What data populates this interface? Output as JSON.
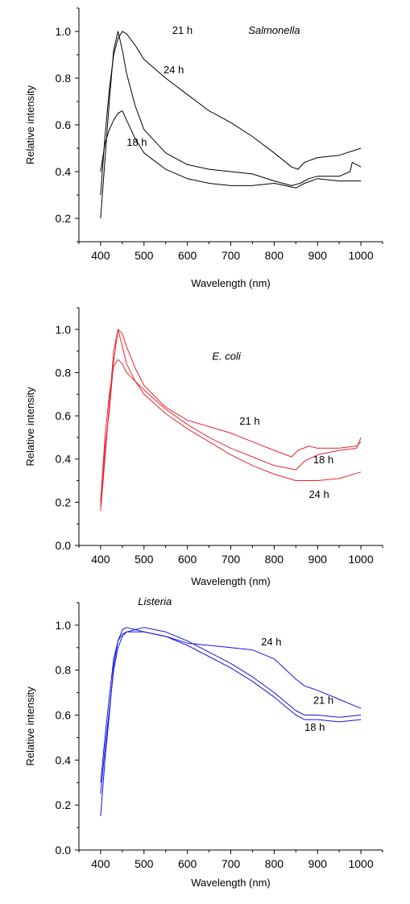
{
  "chart_data": [
    {
      "type": "line",
      "title": "Salmonella",
      "xlabel": "Wavelength (nm)",
      "ylabel": "Relative intensity",
      "xlim": [
        350,
        1050
      ],
      "ylim": [
        0.1,
        1.1
      ],
      "xticks": [
        400,
        500,
        600,
        700,
        800,
        900,
        1000
      ],
      "xtick_labels": [
        "400",
        "500",
        "600",
        "700",
        "800",
        "900",
        "1000"
      ],
      "yticks": [
        0.2,
        0.4,
        0.6,
        0.8,
        1.0
      ],
      "ytick_labels": [
        "0.2",
        "0.4",
        "0.6",
        "0.8",
        "1.0"
      ],
      "color": "#000000",
      "series": [
        {
          "name": "21 h",
          "x": [
            400,
            410,
            420,
            430,
            440,
            450,
            460,
            480,
            500,
            550,
            600,
            650,
            700,
            750,
            800,
            840,
            855,
            870,
            900,
            950,
            1000
          ],
          "y": [
            0.3,
            0.55,
            0.75,
            0.9,
            0.97,
            1.0,
            0.99,
            0.94,
            0.88,
            0.8,
            0.73,
            0.66,
            0.61,
            0.55,
            0.48,
            0.42,
            0.41,
            0.44,
            0.46,
            0.47,
            0.5
          ]
        },
        {
          "name": "24 h",
          "x": [
            400,
            410,
            420,
            430,
            440,
            450,
            460,
            480,
            500,
            550,
            600,
            650,
            700,
            750,
            800,
            840,
            860,
            880,
            900,
            950,
            975,
            980,
            1000
          ],
          "y": [
            0.2,
            0.45,
            0.7,
            0.92,
            1.0,
            0.92,
            0.82,
            0.68,
            0.58,
            0.48,
            0.43,
            0.41,
            0.4,
            0.39,
            0.36,
            0.34,
            0.35,
            0.37,
            0.38,
            0.38,
            0.4,
            0.44,
            0.42
          ]
        },
        {
          "name": "18 h",
          "x": [
            400,
            410,
            420,
            430,
            440,
            450,
            460,
            480,
            500,
            550,
            600,
            650,
            700,
            750,
            800,
            850,
            870,
            900,
            950,
            1000
          ],
          "y": [
            0.4,
            0.52,
            0.58,
            0.62,
            0.65,
            0.66,
            0.62,
            0.54,
            0.48,
            0.41,
            0.37,
            0.35,
            0.34,
            0.34,
            0.35,
            0.33,
            0.35,
            0.37,
            0.36,
            0.36
          ]
        }
      ],
      "annotations": [
        {
          "text": "21 h",
          "x": 565,
          "y": 0.99
        },
        {
          "text": "24 h",
          "x": 545,
          "y": 0.82
        },
        {
          "text": "18 h",
          "x": 460,
          "y": 0.51
        }
      ],
      "title_at": {
        "x": 800,
        "y": 0.99
      }
    },
    {
      "type": "line",
      "title": "E. coli",
      "xlabel": "Wavelength (nm)",
      "ylabel": "Relative intensity",
      "xlim": [
        350,
        1050
      ],
      "ylim": [
        0.0,
        1.1
      ],
      "xticks": [
        400,
        500,
        600,
        700,
        800,
        900,
        1000
      ],
      "xtick_labels": [
        "400",
        "500",
        "600",
        "700",
        "800",
        "900",
        "1000"
      ],
      "yticks": [
        0.0,
        0.2,
        0.4,
        0.6,
        0.8,
        1.0
      ],
      "ytick_labels": [
        "0.0",
        "0.2",
        "0.4",
        "0.6",
        "0.8",
        "1.0"
      ],
      "color": "#e8242e",
      "series": [
        {
          "name": "21 h",
          "x": [
            400,
            410,
            420,
            430,
            440,
            450,
            460,
            480,
            500,
            550,
            600,
            650,
            700,
            750,
            800,
            840,
            855,
            880,
            900,
            950,
            990,
            1000
          ],
          "y": [
            0.18,
            0.45,
            0.62,
            0.85,
            1.0,
            0.98,
            0.92,
            0.82,
            0.74,
            0.64,
            0.58,
            0.55,
            0.52,
            0.48,
            0.44,
            0.41,
            0.44,
            0.46,
            0.45,
            0.45,
            0.46,
            0.48
          ]
        },
        {
          "name": "18 h",
          "x": [
            400,
            410,
            420,
            430,
            440,
            450,
            460,
            480,
            500,
            550,
            600,
            650,
            700,
            750,
            800,
            850,
            870,
            900,
            950,
            990,
            1000
          ],
          "y": [
            0.2,
            0.5,
            0.7,
            0.83,
            0.86,
            0.84,
            0.8,
            0.76,
            0.72,
            0.63,
            0.56,
            0.5,
            0.45,
            0.41,
            0.37,
            0.35,
            0.39,
            0.42,
            0.44,
            0.45,
            0.5
          ]
        },
        {
          "name": "24 h",
          "x": [
            400,
            410,
            420,
            430,
            440,
            450,
            460,
            480,
            500,
            550,
            600,
            650,
            700,
            750,
            800,
            850,
            870,
            900,
            950,
            1000
          ],
          "y": [
            0.16,
            0.4,
            0.65,
            0.9,
            1.0,
            0.92,
            0.84,
            0.76,
            0.7,
            0.61,
            0.54,
            0.48,
            0.42,
            0.37,
            0.33,
            0.3,
            0.3,
            0.3,
            0.31,
            0.34
          ]
        }
      ],
      "annotations": [
        {
          "text": "21 h",
          "x": 720,
          "y": 0.56
        },
        {
          "text": "18 h",
          "x": 890,
          "y": 0.38
        },
        {
          "text": "24 h",
          "x": 880,
          "y": 0.22
        }
      ],
      "title_at": {
        "x": 690,
        "y": 0.86
      }
    },
    {
      "type": "line",
      "title": "Listeria",
      "xlabel": "Wavelength (nm)",
      "ylabel": "Relative intensity",
      "xlim": [
        350,
        1050
      ],
      "ylim": [
        0.0,
        1.1
      ],
      "xticks": [
        400,
        500,
        600,
        700,
        800,
        900,
        1000
      ],
      "xtick_labels": [
        "400",
        "500",
        "600",
        "700",
        "800",
        "900",
        "1000"
      ],
      "yticks": [
        0.0,
        0.2,
        0.4,
        0.6,
        0.8,
        1.0
      ],
      "ytick_labels": [
        "0.0",
        "0.2",
        "0.4",
        "0.6",
        "0.8",
        "1.0"
      ],
      "color": "#1414e6",
      "series": [
        {
          "name": "24 h",
          "x": [
            400,
            410,
            420,
            430,
            440,
            450,
            460,
            480,
            500,
            550,
            600,
            650,
            700,
            750,
            800,
            850,
            870,
            900,
            950,
            1000
          ],
          "y": [
            0.15,
            0.4,
            0.6,
            0.82,
            0.93,
            0.98,
            0.99,
            0.98,
            0.97,
            0.95,
            0.92,
            0.91,
            0.9,
            0.89,
            0.85,
            0.76,
            0.73,
            0.71,
            0.67,
            0.63
          ]
        },
        {
          "name": "21 h",
          "x": [
            400,
            410,
            420,
            430,
            440,
            450,
            460,
            480,
            500,
            550,
            600,
            650,
            700,
            750,
            800,
            850,
            870,
            900,
            950,
            1000
          ],
          "y": [
            0.25,
            0.45,
            0.62,
            0.8,
            0.9,
            0.95,
            0.97,
            0.98,
            0.99,
            0.97,
            0.93,
            0.88,
            0.83,
            0.77,
            0.7,
            0.62,
            0.6,
            0.6,
            0.59,
            0.6
          ]
        },
        {
          "name": "18 h",
          "x": [
            400,
            410,
            420,
            430,
            440,
            450,
            460,
            480,
            500,
            550,
            600,
            650,
            700,
            750,
            800,
            850,
            870,
            900,
            950,
            1000
          ],
          "y": [
            0.3,
            0.5,
            0.68,
            0.85,
            0.93,
            0.96,
            0.97,
            0.97,
            0.97,
            0.95,
            0.91,
            0.86,
            0.81,
            0.75,
            0.68,
            0.6,
            0.58,
            0.58,
            0.57,
            0.58
          ]
        }
      ],
      "annotations": [
        {
          "text": "24 h",
          "x": 770,
          "y": 0.91
        },
        {
          "text": "21 h",
          "x": 890,
          "y": 0.65
        },
        {
          "text": "18 h",
          "x": 870,
          "y": 0.53
        }
      ],
      "title_at": {
        "x": 525,
        "y": 1.09
      }
    }
  ]
}
